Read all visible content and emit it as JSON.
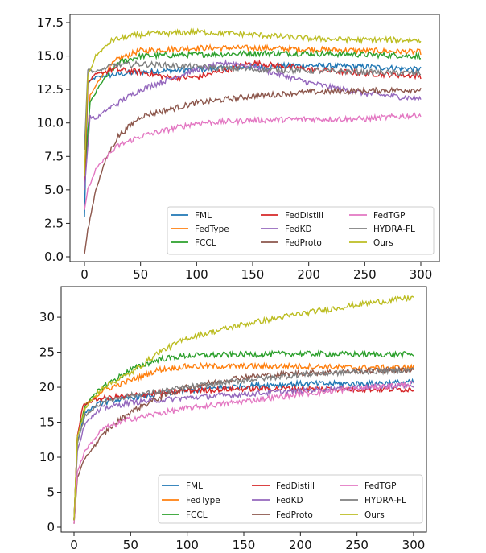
{
  "chart_data": [
    {
      "type": "line",
      "title": "",
      "xlabel": "",
      "ylabel": "",
      "xlim": [
        0,
        300
      ],
      "ylim": [
        0,
        17.5
      ],
      "xticks": [
        "0",
        "50",
        "100",
        "150",
        "200",
        "250",
        "300"
      ],
      "yticks": [
        "0.0",
        "2.5",
        "5.0",
        "7.5",
        "10.0",
        "12.5",
        "15.0",
        "17.5"
      ],
      "grid": false,
      "legend": "lower-right",
      "series": [
        {
          "name": "FML",
          "color": "#1f77b4",
          "x": [
            0,
            3,
            10,
            25,
            50,
            100,
            150,
            200,
            250,
            300
          ],
          "values": [
            3.0,
            13.0,
            13.4,
            13.6,
            13.8,
            14.0,
            14.2,
            14.3,
            14.2,
            14.0
          ]
        },
        {
          "name": "FedType",
          "color": "#ff7f0e",
          "x": [
            0,
            5,
            15,
            30,
            50,
            100,
            150,
            200,
            250,
            300
          ],
          "values": [
            5.0,
            12.0,
            13.5,
            14.8,
            15.4,
            15.6,
            15.6,
            15.5,
            15.4,
            15.3
          ]
        },
        {
          "name": "FCCL",
          "color": "#2ca02c",
          "x": [
            0,
            5,
            15,
            30,
            50,
            100,
            150,
            200,
            250,
            300
          ],
          "values": [
            6.0,
            11.5,
            13.0,
            14.5,
            15.0,
            15.1,
            15.2,
            15.2,
            15.1,
            15.0
          ]
        },
        {
          "name": "FedDistill",
          "color": "#d62728",
          "x": [
            0,
            3,
            10,
            25,
            50,
            75,
            100,
            150,
            200,
            250,
            300
          ],
          "values": [
            5.0,
            13.0,
            13.6,
            14.0,
            13.8,
            13.4,
            13.4,
            14.5,
            14.0,
            13.7,
            13.5
          ]
        },
        {
          "name": "FedKD",
          "color": "#9467bd",
          "x": [
            0,
            5,
            10,
            20,
            50,
            100,
            130,
            150,
            200,
            250,
            300
          ],
          "values": [
            5.0,
            10.5,
            10.3,
            11.0,
            12.5,
            14.0,
            14.5,
            14.2,
            13.0,
            12.2,
            11.8
          ]
        },
        {
          "name": "FedProto",
          "color": "#8c564b",
          "x": [
            0,
            3,
            10,
            20,
            30,
            50,
            100,
            150,
            200,
            250,
            300
          ],
          "values": [
            0.2,
            2.0,
            5.0,
            7.5,
            9.0,
            10.5,
            11.5,
            12.0,
            12.3,
            12.4,
            12.5
          ]
        },
        {
          "name": "FedTGP",
          "color": "#e377c2",
          "x": [
            0,
            3,
            10,
            20,
            30,
            50,
            100,
            150,
            200,
            250,
            300
          ],
          "values": [
            3.5,
            5.0,
            6.5,
            7.5,
            8.3,
            9.0,
            10.0,
            10.2,
            10.3,
            10.3,
            10.6
          ]
        },
        {
          "name": "HYDRA-FL",
          "color": "#7f7f7f",
          "x": [
            0,
            3,
            10,
            25,
            50,
            100,
            150,
            200,
            250,
            300
          ],
          "values": [
            8.0,
            14.0,
            13.8,
            14.3,
            14.4,
            14.2,
            14.0,
            13.9,
            13.8,
            13.7
          ]
        },
        {
          "name": "Ours",
          "color": "#bcbd22",
          "x": [
            0,
            3,
            10,
            25,
            50,
            100,
            150,
            200,
            250,
            300
          ],
          "values": [
            6.0,
            13.5,
            15.0,
            16.2,
            16.6,
            16.8,
            16.6,
            16.3,
            16.2,
            16.2
          ]
        }
      ]
    },
    {
      "type": "line",
      "title": "",
      "xlabel": "",
      "ylabel": "",
      "xlim": [
        0,
        300
      ],
      "ylim": [
        0,
        33
      ],
      "xticks": [
        "0",
        "50",
        "100",
        "150",
        "200",
        "250",
        "300"
      ],
      "yticks": [
        "0",
        "5",
        "10",
        "15",
        "20",
        "25",
        "30"
      ],
      "grid": false,
      "legend": "lower-right",
      "series": [
        {
          "name": "FML",
          "color": "#1f77b4",
          "x": [
            0,
            3,
            10,
            25,
            50,
            100,
            150,
            200,
            250,
            300
          ],
          "values": [
            1.0,
            12.0,
            16.5,
            17.8,
            18.5,
            19.5,
            20.2,
            20.5,
            20.5,
            20.7
          ]
        },
        {
          "name": "FedType",
          "color": "#ff7f0e",
          "x": [
            0,
            3,
            10,
            25,
            50,
            75,
            100,
            150,
            200,
            250,
            300
          ],
          "values": [
            1.0,
            13.0,
            17.5,
            19.5,
            21.0,
            22.5,
            23.0,
            23.0,
            23.0,
            22.8,
            22.8
          ]
        },
        {
          "name": "FCCL",
          "color": "#2ca02c",
          "x": [
            0,
            3,
            10,
            25,
            50,
            75,
            100,
            150,
            200,
            250,
            300
          ],
          "values": [
            1.0,
            13.0,
            17.5,
            20.0,
            22.5,
            24.0,
            24.5,
            24.7,
            24.8,
            24.7,
            24.7
          ]
        },
        {
          "name": "FedDistill",
          "color": "#d62728",
          "x": [
            0,
            3,
            8,
            20,
            50,
            100,
            150,
            200,
            250,
            300
          ],
          "values": [
            1.0,
            13.0,
            17.5,
            18.3,
            18.8,
            19.5,
            19.8,
            19.8,
            19.7,
            19.7
          ]
        },
        {
          "name": "FedKD",
          "color": "#9467bd",
          "x": [
            0,
            3,
            10,
            25,
            50,
            100,
            150,
            200,
            250,
            300
          ],
          "values": [
            1.0,
            11.0,
            15.0,
            17.0,
            17.8,
            18.5,
            19.0,
            19.5,
            20.0,
            20.3
          ]
        },
        {
          "name": "FedProto",
          "color": "#8c564b",
          "x": [
            0,
            3,
            10,
            20,
            30,
            50,
            75,
            100,
            150,
            200,
            250,
            300
          ],
          "values": [
            0.5,
            7.0,
            10.0,
            12.0,
            14.0,
            16.5,
            18.5,
            20.0,
            21.5,
            22.0,
            22.3,
            22.5
          ]
        },
        {
          "name": "FedTGP",
          "color": "#e377c2",
          "x": [
            0,
            3,
            10,
            25,
            50,
            100,
            150,
            200,
            250,
            300
          ],
          "values": [
            0.5,
            8.0,
            11.0,
            14.0,
            15.5,
            17.0,
            18.0,
            19.0,
            19.8,
            20.5
          ]
        },
        {
          "name": "HYDRA-FL",
          "color": "#7f7f7f",
          "x": [
            0,
            3,
            10,
            25,
            50,
            100,
            150,
            200,
            250,
            300
          ],
          "values": [
            1.0,
            12.0,
            16.0,
            18.0,
            18.8,
            20.0,
            21.0,
            21.8,
            22.2,
            22.5
          ]
        },
        {
          "name": "Ours",
          "color": "#bcbd22",
          "x": [
            0,
            3,
            10,
            25,
            50,
            75,
            100,
            150,
            200,
            250,
            300
          ],
          "values": [
            1.0,
            13.0,
            17.0,
            20.0,
            22.0,
            25.0,
            27.0,
            29.0,
            30.5,
            31.8,
            32.8
          ]
        }
      ]
    }
  ]
}
